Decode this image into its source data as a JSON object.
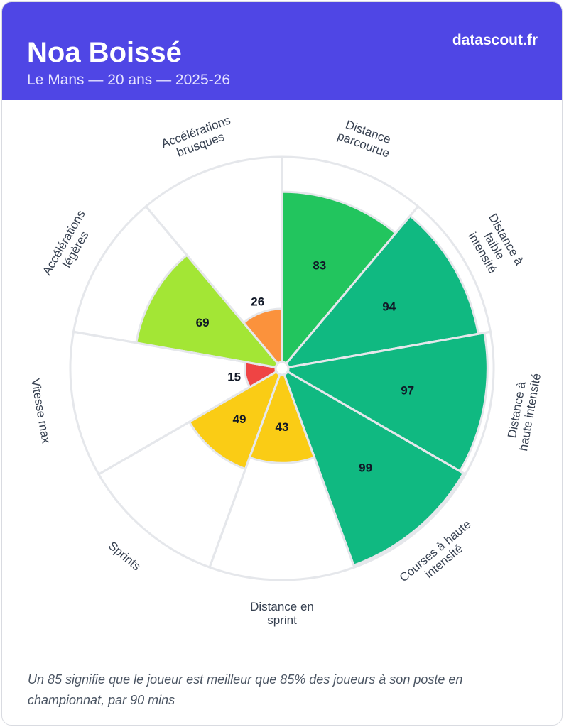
{
  "header": {
    "player_name": "Noa Boissé",
    "subtitle": "Le Mans — 20 ans — 2025-26",
    "brand": "datascout.fr",
    "background_color": "#4f46e5"
  },
  "chart_data": {
    "type": "polar-bar",
    "range": [
      0,
      100
    ],
    "categories": [
      {
        "label": [
          "Distance",
          "parcourue"
        ],
        "value": 83,
        "color": "#22c55e"
      },
      {
        "label": [
          "Distance à",
          "faible",
          "intensité"
        ],
        "value": 94,
        "color": "#10b981"
      },
      {
        "label": [
          "Distance à",
          "haute intensité"
        ],
        "value": 97,
        "color": "#10b981"
      },
      {
        "label": [
          "Courses à haute",
          "intensité"
        ],
        "value": 99,
        "color": "#10b981"
      },
      {
        "label": [
          "Distance en",
          "sprint"
        ],
        "value": 43,
        "color": "#facc15"
      },
      {
        "label": [
          "Sprints"
        ],
        "value": 49,
        "color": "#facc15"
      },
      {
        "label": [
          "Vitesse max"
        ],
        "value": 15,
        "color": "#ef4444"
      },
      {
        "label": [
          "Accélérations",
          "légères"
        ],
        "value": 69,
        "color": "#a3e635"
      },
      {
        "label": [
          "Accélérations",
          "brusques"
        ],
        "value": 26,
        "color": "#fb923c"
      }
    ]
  },
  "footnote": "Un 85 signifie que le joueur est meilleur que 85% des joueurs à son poste en championnat, par 90 mins"
}
